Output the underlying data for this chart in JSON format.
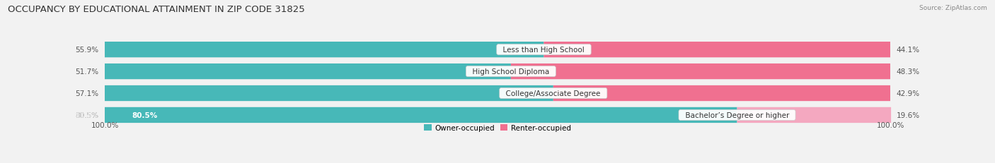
{
  "title": "OCCUPANCY BY EDUCATIONAL ATTAINMENT IN ZIP CODE 31825",
  "source": "Source: ZipAtlas.com",
  "categories": [
    "Less than High School",
    "High School Diploma",
    "College/Associate Degree",
    "Bachelor’s Degree or higher"
  ],
  "owner_values": [
    55.9,
    51.7,
    57.1,
    80.5
  ],
  "renter_values": [
    44.1,
    48.3,
    42.9,
    19.6
  ],
  "owner_color": "#47b8b8",
  "renter_colors": [
    "#f07090",
    "#f07090",
    "#f07090",
    "#f4a8c0"
  ],
  "row_bg_color": "#e8e8e8",
  "background_color": "#f2f2f2",
  "title_fontsize": 9.5,
  "source_fontsize": 6.5,
  "label_fontsize": 7.5,
  "cat_fontsize": 7.5,
  "bar_height": 0.72,
  "total_width": 100.0
}
